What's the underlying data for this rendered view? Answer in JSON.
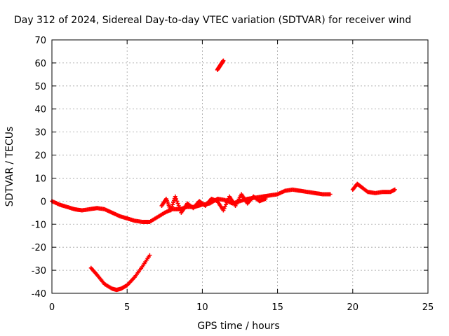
{
  "chart_data": {
    "type": "scatter",
    "title": "Day 312 of 2024, Sidereal Day-to-day VTEC variation (SDTVAR) for receiver wind",
    "xlabel": "GPS time / hours",
    "ylabel": "SDTVAR / TECUs",
    "xlim": [
      0,
      25
    ],
    "ylim": [
      -40,
      70
    ],
    "xticks": [
      0,
      5,
      10,
      15,
      20,
      25
    ],
    "yticks": [
      -40,
      -30,
      -20,
      -10,
      0,
      10,
      20,
      30,
      40,
      50,
      60,
      70
    ],
    "grid": true,
    "legend": "none",
    "marker": "plus",
    "series": [
      {
        "name": "main trace",
        "color": "#ff0000",
        "x": [
          0.0,
          0.5,
          1.0,
          1.5,
          2.0,
          2.5,
          3.0,
          3.5,
          4.0,
          4.5,
          5.0,
          5.5,
          6.0,
          6.5,
          7.0,
          7.5,
          8.0,
          8.5,
          9.0,
          9.5,
          10.0,
          10.5,
          11.0,
          11.5,
          12.0,
          12.5,
          13.0,
          13.5,
          14.0,
          14.5,
          15.0,
          15.5,
          16.0,
          16.5,
          17.0,
          17.5,
          18.0,
          18.5
        ],
        "y": [
          0,
          -1.5,
          -2.5,
          -3.5,
          -4,
          -3.5,
          -3,
          -3.5,
          -5,
          -6.5,
          -7.5,
          -8.5,
          -9,
          -9,
          -7,
          -5,
          -3.5,
          -3.5,
          -2.5,
          -2.5,
          -1.5,
          -1,
          1,
          0.5,
          -1,
          0,
          1,
          1.5,
          2,
          2.5,
          3,
          4.5,
          5,
          4.5,
          4,
          3.5,
          3,
          3
        ]
      },
      {
        "name": "scatter band",
        "color": "#ff0000",
        "x": [
          7.3,
          7.6,
          7.9,
          8.2,
          8.6,
          9.0,
          9.4,
          9.8,
          10.2,
          10.6,
          11.0,
          11.4,
          11.8,
          12.2,
          12.6,
          13.0,
          13.4,
          13.8,
          14.2
        ],
        "y": [
          -2,
          1,
          -4,
          2,
          -5,
          -1,
          -3,
          0,
          -2,
          1,
          0,
          -4,
          2,
          -2,
          3,
          -1,
          2,
          0,
          1
        ]
      },
      {
        "name": "late segment",
        "color": "#ff0000",
        "x": [
          20.0,
          20.3,
          20.6,
          21.0,
          21.5,
          22.0,
          22.5,
          22.8
        ],
        "y": [
          5,
          7.5,
          6,
          4,
          3.5,
          4,
          4,
          5
        ]
      },
      {
        "name": "low arc",
        "color": "#ff0000",
        "x": [
          2.6,
          3.0,
          3.5,
          4.0,
          4.3,
          4.6,
          5.0,
          5.5,
          6.0,
          6.5
        ],
        "y": [
          -29,
          -32,
          -36,
          -38,
          -38.5,
          -38,
          -36.5,
          -33,
          -28.5,
          -23.5
        ]
      },
      {
        "name": "high segment",
        "color": "#ff0000",
        "x": [
          11.0,
          11.1,
          11.2,
          11.3,
          11.4
        ],
        "y": [
          57,
          58,
          59,
          60,
          61
        ]
      }
    ]
  }
}
